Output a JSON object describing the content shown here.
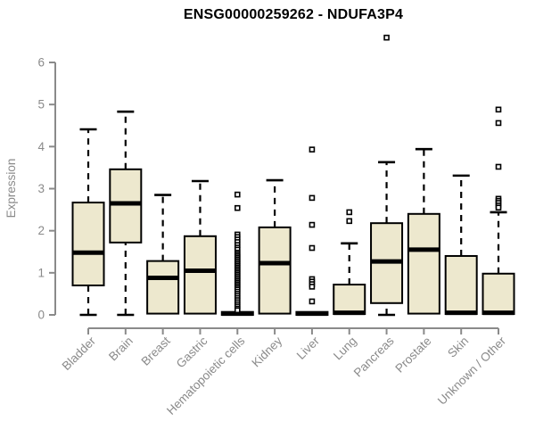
{
  "chart_data": {
    "type": "boxplot",
    "title": "ENSG00000259262 - NDUFA3P4",
    "xlabel": "",
    "ylabel": "Expression",
    "ylim": [
      0,
      6.8
    ],
    "yticks": [
      0,
      1,
      2,
      3,
      4,
      5,
      6
    ],
    "grid": "off",
    "legend": "none",
    "categories": [
      "Bladder",
      "Brain",
      "Breast",
      "Gastric",
      "Hematopoietic cells",
      "Kidney",
      "Liver",
      "Lung",
      "Pancreas",
      "Prostate",
      "Skin",
      "Unknown / Other"
    ],
    "boxes": [
      {
        "category": "Bladder",
        "low": 0,
        "q1": 0.7,
        "median": 1.48,
        "q3": 2.67,
        "high": 4.41,
        "outliers": []
      },
      {
        "category": "Brain",
        "low": 0,
        "q1": 1.72,
        "median": 2.65,
        "q3": 3.46,
        "high": 4.83,
        "outliers": []
      },
      {
        "category": "Breast",
        "low": 0,
        "q1": 0.03,
        "median": 0.88,
        "q3": 1.28,
        "high": 2.85,
        "outliers": []
      },
      {
        "category": "Gastric",
        "low": 0,
        "q1": 0.03,
        "median": 1.05,
        "q3": 1.87,
        "high": 3.18,
        "outliers": []
      },
      {
        "category": "Hematopoietic cells",
        "low": 0,
        "q1": 0,
        "median": 0.03,
        "q3": 0.07,
        "high": 0.08,
        "outliers": [
          2.86,
          2.54,
          1.91,
          1.85,
          1.79,
          1.73,
          1.66,
          1.6,
          1.55,
          1.48,
          1.44,
          1.4,
          1.36,
          1.32,
          1.28,
          1.24,
          1.2,
          1.16,
          1.12,
          1.08,
          1.04,
          1.0,
          0.96,
          0.92,
          0.88,
          0.84,
          0.8,
          0.76,
          0.72,
          0.68,
          0.64,
          0.6,
          0.55,
          0.5,
          0.45,
          0.4,
          0.35,
          0.3,
          0.25,
          0.2,
          0.15,
          0.11
        ]
      },
      {
        "category": "Kidney",
        "low": 0,
        "q1": 0.03,
        "median": 1.23,
        "q3": 2.08,
        "high": 3.2,
        "outliers": []
      },
      {
        "category": "Liver",
        "low": 0,
        "q1": 0,
        "median": 0.03,
        "q3": 0.07,
        "high": 0.08,
        "outliers": [
          3.93,
          2.78,
          2.14,
          1.59,
          0.85,
          0.79,
          0.73,
          0.67,
          0.32
        ]
      },
      {
        "category": "Lung",
        "low": 0,
        "q1": 0.02,
        "median": 0.05,
        "q3": 0.72,
        "high": 1.7,
        "outliers": [
          2.44,
          2.23
        ]
      },
      {
        "category": "Pancreas",
        "low": 0,
        "q1": 0.28,
        "median": 1.27,
        "q3": 2.18,
        "high": 3.63,
        "outliers": [
          6.59
        ]
      },
      {
        "category": "Prostate",
        "low": 0,
        "q1": 0.03,
        "median": 1.55,
        "q3": 2.4,
        "high": 3.94,
        "outliers": []
      },
      {
        "category": "Skin",
        "low": 0,
        "q1": 0.02,
        "median": 0.05,
        "q3": 1.4,
        "high": 3.31,
        "outliers": []
      },
      {
        "category": "Unknown / Other",
        "low": 0,
        "q1": 0.02,
        "median": 0.05,
        "q3": 0.98,
        "high": 2.44,
        "outliers": [
          4.88,
          4.56,
          3.52,
          2.76,
          2.71,
          2.66,
          2.6,
          2.55
        ]
      }
    ],
    "colors": {
      "box_fill": "#EDE8CE",
      "box_stroke": "#000000",
      "median": "#000000",
      "whisker": "#000000",
      "outlier_stroke": "#000000",
      "outlier_fill": "#ffffff",
      "axis": "#8a8a8a",
      "tick_label": "#8a8a8a",
      "title": "#000000",
      "background": "#ffffff"
    }
  }
}
